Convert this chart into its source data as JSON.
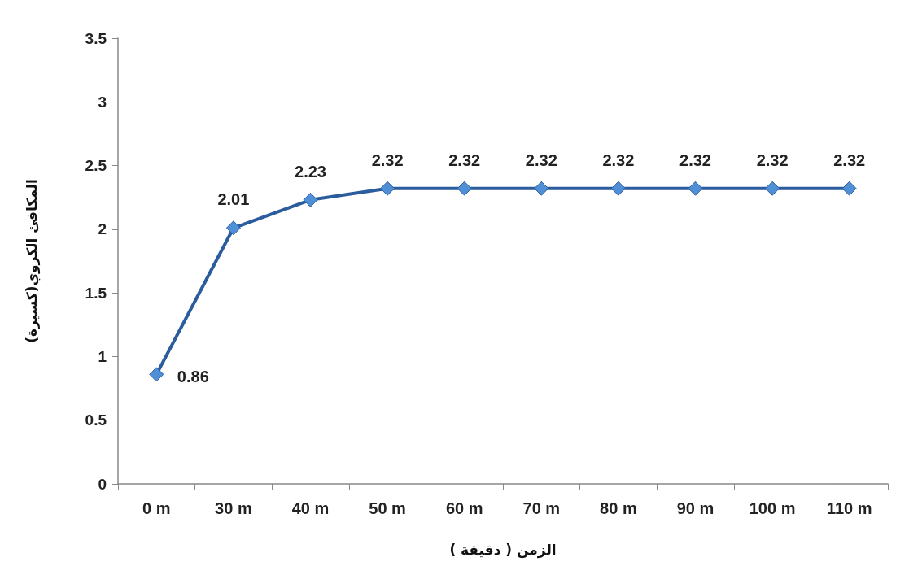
{
  "chart_data": {
    "type": "line",
    "xlabel": "الزمن ( دقيقة )",
    "ylabel": "المكافئ الكروي(كسيرة)",
    "categories": [
      "0 m",
      "30 m",
      "40 m",
      "50 m",
      "60 m",
      "70 m",
      "80 m",
      "90 m",
      "100 m",
      "110 m"
    ],
    "series": [
      {
        "color": "#2b5c9e",
        "values": [
          0.86,
          2.01,
          2.23,
          2.32,
          2.32,
          2.32,
          2.32,
          2.32,
          2.32,
          2.32
        ]
      }
    ],
    "ylim": [
      0,
      3.5
    ],
    "yticks": [
      0,
      0.5,
      1,
      1.5,
      2,
      2.5,
      3,
      3.5
    ],
    "grid": false,
    "marker": "diamond",
    "line_style": "solid",
    "data_labels": true
  }
}
